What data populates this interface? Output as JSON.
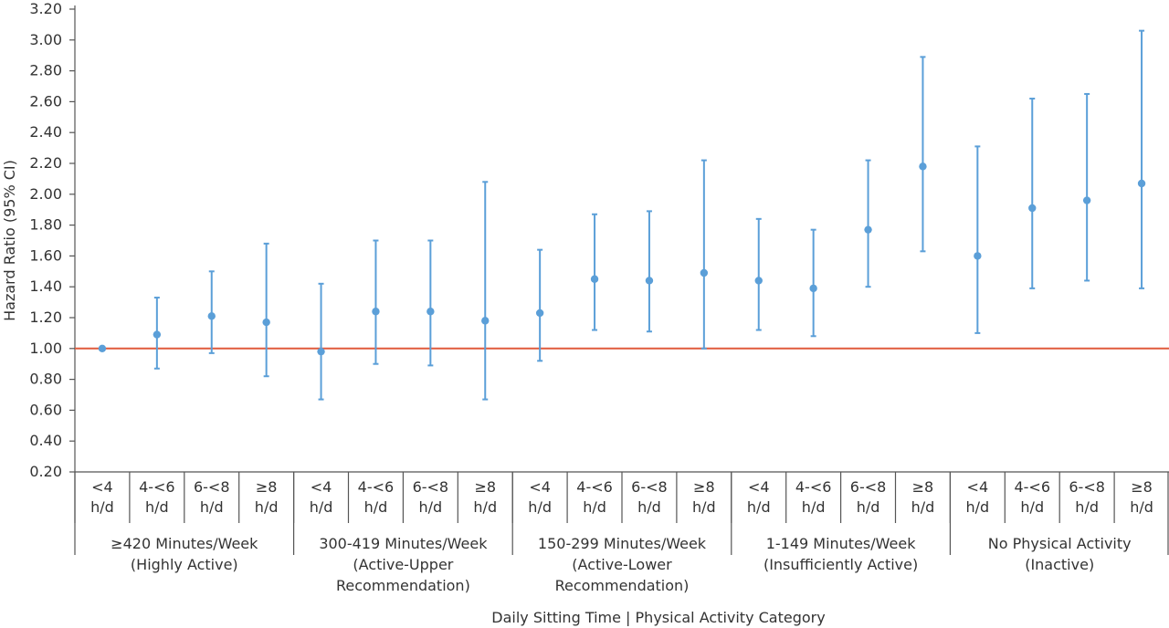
{
  "chart_data": {
    "type": "scatter",
    "ylabel": "Hazard Ratio (95% CI)",
    "xlabel": "Daily Sitting Time | Physical Activity Category",
    "ylim": [
      0.2,
      3.2
    ],
    "yticks": [
      "0.20",
      "0.40",
      "0.60",
      "0.80",
      "1.00",
      "1.20",
      "1.40",
      "1.60",
      "1.80",
      "2.00",
      "2.20",
      "2.40",
      "2.60",
      "2.80",
      "3.00",
      "3.20"
    ],
    "reference_line": 1.0,
    "colors": {
      "points": "#5b9fd8",
      "reference": "#e05a3c",
      "axis": "#555555"
    },
    "groups": [
      {
        "label_lines": [
          "≥420 Minutes/Week",
          "(Highly Active)"
        ],
        "points": [
          {
            "cat": [
              "<4",
              "h/d"
            ],
            "hr": 1.0,
            "lo": 1.0,
            "hi": 1.0
          },
          {
            "cat": [
              "4-<6",
              "h/d"
            ],
            "hr": 1.09,
            "lo": 0.87,
            "hi": 1.33
          },
          {
            "cat": [
              "6-<8",
              "h/d"
            ],
            "hr": 1.21,
            "lo": 0.97,
            "hi": 1.5
          },
          {
            "cat": [
              "≥8",
              "h/d"
            ],
            "hr": 1.17,
            "lo": 0.82,
            "hi": 1.68
          }
        ]
      },
      {
        "label_lines": [
          "300-419 Minutes/Week",
          "(Active-Upper",
          "Recommendation)"
        ],
        "points": [
          {
            "cat": [
              "<4",
              "h/d"
            ],
            "hr": 0.98,
            "lo": 0.67,
            "hi": 1.42
          },
          {
            "cat": [
              "4-<6",
              "h/d"
            ],
            "hr": 1.24,
            "lo": 0.9,
            "hi": 1.7
          },
          {
            "cat": [
              "6-<8",
              "h/d"
            ],
            "hr": 1.24,
            "lo": 0.89,
            "hi": 1.7
          },
          {
            "cat": [
              "≥8",
              "h/d"
            ],
            "hr": 1.18,
            "lo": 0.67,
            "hi": 2.08
          }
        ]
      },
      {
        "label_lines": [
          "150-299 Minutes/Week",
          "(Active-Lower",
          "Recommendation)"
        ],
        "points": [
          {
            "cat": [
              "<4",
              "h/d"
            ],
            "hr": 1.23,
            "lo": 0.92,
            "hi": 1.64
          },
          {
            "cat": [
              "4-<6",
              "h/d"
            ],
            "hr": 1.45,
            "lo": 1.12,
            "hi": 1.87
          },
          {
            "cat": [
              "6-<8",
              "h/d"
            ],
            "hr": 1.44,
            "lo": 1.11,
            "hi": 1.89
          },
          {
            "cat": [
              "≥8",
              "h/d"
            ],
            "hr": 1.49,
            "lo": 1.0,
            "hi": 2.22
          }
        ]
      },
      {
        "label_lines": [
          "1-149 Minutes/Week",
          "(Insufficiently Active)"
        ],
        "points": [
          {
            "cat": [
              "<4",
              "h/d"
            ],
            "hr": 1.44,
            "lo": 1.12,
            "hi": 1.84
          },
          {
            "cat": [
              "4-<6",
              "h/d"
            ],
            "hr": 1.39,
            "lo": 1.08,
            "hi": 1.77
          },
          {
            "cat": [
              "6-<8",
              "h/d"
            ],
            "hr": 1.77,
            "lo": 1.4,
            "hi": 2.22
          },
          {
            "cat": [
              "≥8",
              "h/d"
            ],
            "hr": 2.18,
            "lo": 1.63,
            "hi": 2.89
          }
        ]
      },
      {
        "label_lines": [
          "No Physical Activity",
          "(Inactive)"
        ],
        "points": [
          {
            "cat": [
              "<4",
              "h/d"
            ],
            "hr": 1.6,
            "lo": 1.1,
            "hi": 2.31
          },
          {
            "cat": [
              "4-<6",
              "h/d"
            ],
            "hr": 1.91,
            "lo": 1.39,
            "hi": 2.62
          },
          {
            "cat": [
              "6-<8",
              "h/d"
            ],
            "hr": 1.96,
            "lo": 1.44,
            "hi": 2.65
          },
          {
            "cat": [
              "≥8",
              "h/d"
            ],
            "hr": 2.07,
            "lo": 1.39,
            "hi": 3.06
          }
        ]
      }
    ]
  }
}
